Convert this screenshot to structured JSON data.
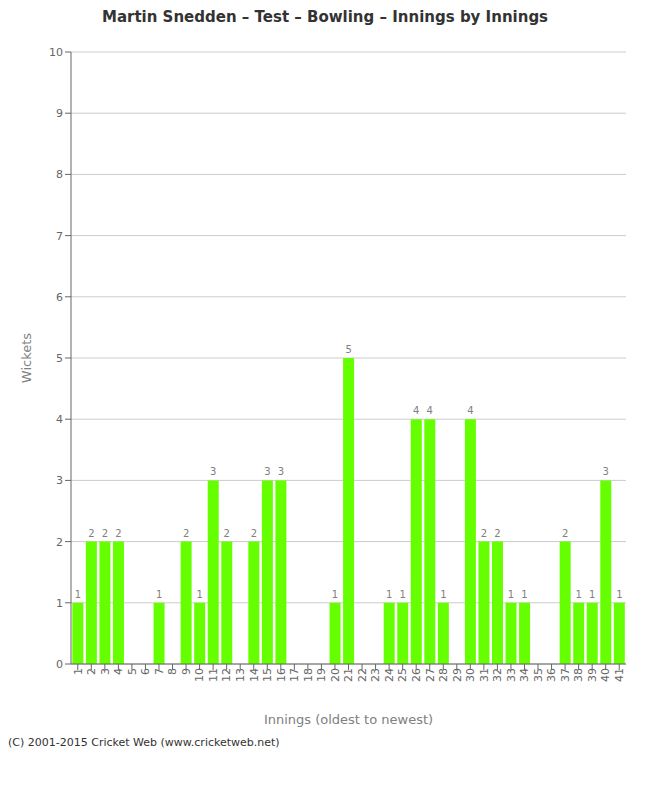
{
  "chart_data": {
    "type": "bar",
    "title": "Martin Snedden – Test – Bowling – Innings by Innings",
    "x_label": "Innings (oldest to newest)",
    "y_label": "Wickets",
    "categories": [
      "1",
      "2",
      "3",
      "4",
      "5",
      "6",
      "7",
      "8",
      "9",
      "10",
      "11",
      "12",
      "13",
      "14",
      "15",
      "16",
      "17",
      "18",
      "19",
      "20",
      "21",
      "22",
      "23",
      "24",
      "25",
      "26",
      "27",
      "28",
      "29",
      "30",
      "31",
      "32",
      "33",
      "34",
      "35",
      "36",
      "37",
      "38",
      "39",
      "40",
      "41"
    ],
    "values": [
      1,
      2,
      2,
      2,
      0,
      0,
      1,
      0,
      2,
      1,
      3,
      2,
      0,
      2,
      3,
      3,
      0,
      0,
      0,
      1,
      5,
      0,
      0,
      1,
      1,
      4,
      4,
      1,
      0,
      4,
      2,
      2,
      1,
      1,
      0,
      0,
      2,
      1,
      1,
      3,
      1
    ],
    "color": "#66ff00",
    "ylim": [
      0,
      10
    ],
    "yticks": [
      0,
      1,
      2,
      3,
      4,
      5,
      6,
      7,
      8,
      9,
      10
    ],
    "grid": true,
    "data_labels": true,
    "annotations": [
      "(C) 2001-2015 Cricket Web (www.cricketweb.net)"
    ]
  }
}
